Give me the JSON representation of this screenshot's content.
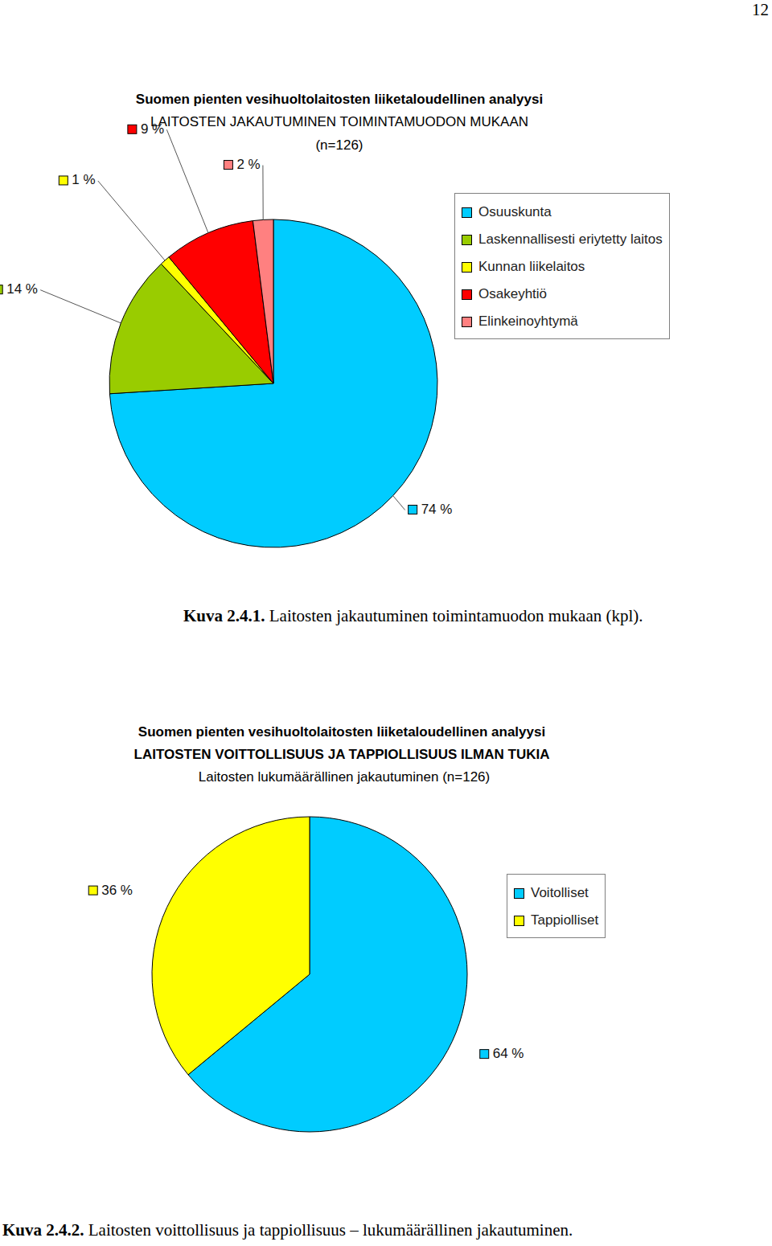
{
  "page_number": "12",
  "chart_data": [
    {
      "type": "pie",
      "title": [
        "Suomen pienten vesihuoltolaitosten liiketaloudellinen analyysi",
        "LAITOSTEN JAKAUTUMINEN TOIMINTAMUODON MUKAAN"
      ],
      "subtitle": "(n=126)",
      "categories": [
        "Osuuskunta",
        "Laskennallisesti eriytetty laitos",
        "Kunnan liikelaitos",
        "Osakeyhtiö",
        "Elinkeinoyhtymä"
      ],
      "values": [
        74,
        14,
        1,
        9,
        2
      ],
      "value_labels": [
        "74 %",
        "14 %",
        "1 %",
        "9 %",
        "2 %"
      ],
      "colors": [
        "#00ccff",
        "#99cc00",
        "#ffff00",
        "#ff0000",
        "#ff8080"
      ],
      "legend": "top-right",
      "data_labels": true,
      "caption": {
        "label": "Kuva 2.4.1.",
        "text": "Laitosten jakautuminen toimintamuodon mukaan (kpl)."
      }
    },
    {
      "type": "pie",
      "title": [
        "Suomen pienten vesihuoltolaitosten liiketaloudellinen analyysi",
        "LAITOSTEN VOITTOLLISUUS JA TAPPIOLLISUUS ILMAN TUKIA"
      ],
      "subtitle": "Laitosten lukumäärällinen jakautuminen (n=126)",
      "categories": [
        "Voitolliset",
        "Tappiolliset"
      ],
      "values": [
        64,
        36
      ],
      "value_labels": [
        "64 %",
        "36 %"
      ],
      "colors": [
        "#00ccff",
        "#ffff00"
      ],
      "legend": "top-right",
      "data_labels": true,
      "caption": {
        "label": "Kuva 2.4.2.",
        "text": "Laitosten voittollisuus ja tappiollisuus – lukumäärällinen jakautuminen."
      }
    }
  ]
}
